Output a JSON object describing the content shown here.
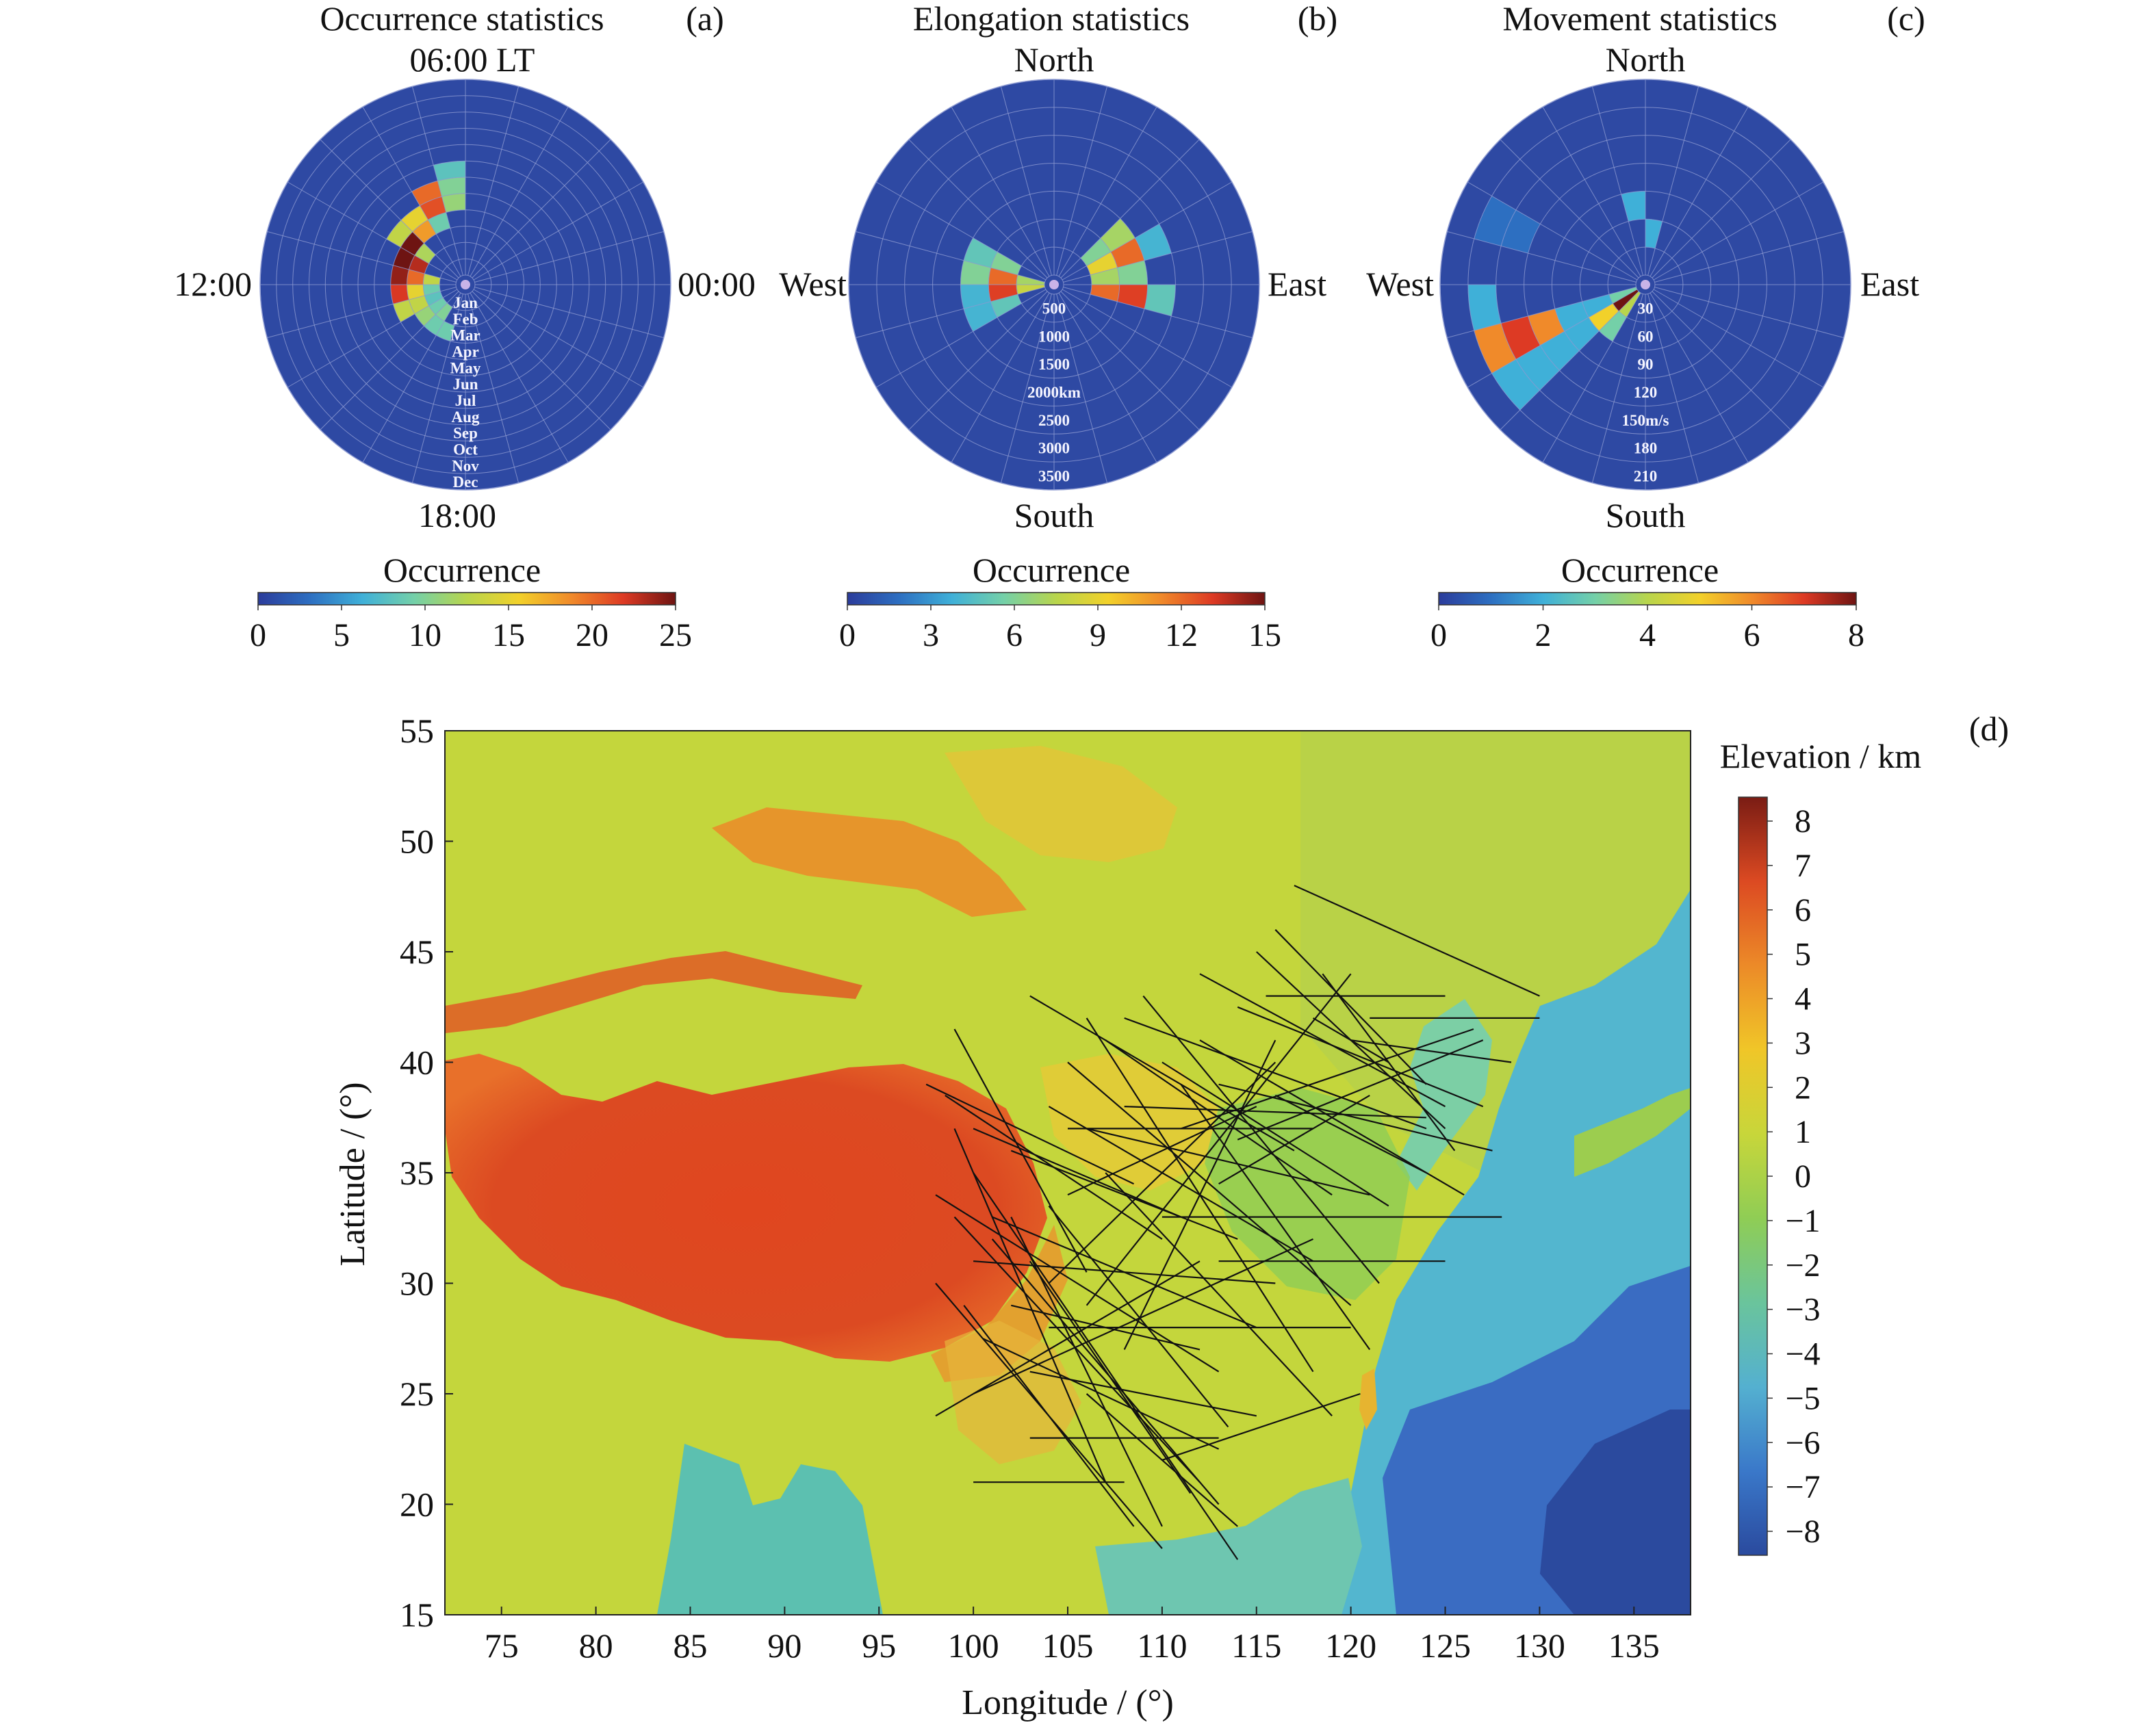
{
  "colors": {
    "polar_background": "#2e49a3",
    "jet_scale": [
      "#2b3c9b",
      "#2d6fc1",
      "#3fb0d8",
      "#74d0a8",
      "#b8d54c",
      "#f2d12a",
      "#f08a2a",
      "#dd3a24",
      "#6e1412"
    ],
    "elevation_scale": [
      "#2a4a9e",
      "#3a78c9",
      "#54b0d0",
      "#6ac49c",
      "#8fcd55",
      "#c8d63a",
      "#f0c628",
      "#ec8a28",
      "#dc4a22",
      "#7a1c14"
    ],
    "track_line": "#111111"
  },
  "chart_data": [
    {
      "panel": "(a)",
      "type": "heatmap",
      "projection": "polar",
      "title": "Occurrence statistics",
      "direction_labels": {
        "top": "06:00 LT",
        "left": "12:00",
        "right": "00:00",
        "bottom": "18:00"
      },
      "ring_labels": [
        "Jan",
        "Feb",
        "Mar",
        "Apr",
        "May",
        "Jun",
        "Jul",
        "Aug",
        "Sep",
        "Oct",
        "Nov",
        "Dec"
      ],
      "sectors": 24,
      "colorbar": {
        "title": "Occurrence",
        "ticks": [
          "0",
          "5",
          "10",
          "15",
          "20",
          "25"
        ],
        "range": [
          0,
          25
        ]
      },
      "cells": [
        {
          "ring": 2,
          "sector": 11,
          "value": 13
        },
        {
          "ring": 2,
          "sector": 12,
          "value": 9
        },
        {
          "ring": 2,
          "sector": 13,
          "value": 8
        },
        {
          "ring": 2,
          "sector": 14,
          "value": 9
        },
        {
          "ring": 2,
          "sector": 15,
          "value": 10
        },
        {
          "ring": 3,
          "sector": 9,
          "value": 12
        },
        {
          "ring": 3,
          "sector": 10,
          "value": 23
        },
        {
          "ring": 3,
          "sector": 11,
          "value": 20
        },
        {
          "ring": 3,
          "sector": 12,
          "value": 15
        },
        {
          "ring": 3,
          "sector": 13,
          "value": 13
        },
        {
          "ring": 3,
          "sector": 14,
          "value": 11
        },
        {
          "ring": 3,
          "sector": 15,
          "value": 9
        },
        {
          "ring": 3,
          "sector": 16,
          "value": 9
        },
        {
          "ring": 4,
          "sector": 7,
          "value": 9
        },
        {
          "ring": 4,
          "sector": 8,
          "value": 18
        },
        {
          "ring": 4,
          "sector": 9,
          "value": 25
        },
        {
          "ring": 4,
          "sector": 10,
          "value": 25
        },
        {
          "ring": 4,
          "sector": 11,
          "value": 24
        },
        {
          "ring": 4,
          "sector": 12,
          "value": 22
        },
        {
          "ring": 4,
          "sector": 13,
          "value": 13
        },
        {
          "ring": 5,
          "sector": 6,
          "value": 11
        },
        {
          "ring": 5,
          "sector": 7,
          "value": 21
        },
        {
          "ring": 5,
          "sector": 8,
          "value": 15
        },
        {
          "ring": 5,
          "sector": 9,
          "value": 13
        },
        {
          "ring": 6,
          "sector": 6,
          "value": 10
        },
        {
          "ring": 6,
          "sector": 7,
          "value": 20
        },
        {
          "ring": 7,
          "sector": 6,
          "value": 8
        }
      ]
    },
    {
      "panel": "(b)",
      "type": "heatmap",
      "projection": "polar",
      "title": "Elongation statistics",
      "direction_labels": {
        "top": "North",
        "left": "West",
        "right": "East",
        "bottom": "South"
      },
      "ring_labels": [
        "500",
        "1000",
        "1500",
        "2000km",
        "2500",
        "3000",
        "3500"
      ],
      "sectors": 24,
      "colorbar": {
        "title": "Occurrence",
        "ticks": [
          "0",
          "3",
          "6",
          "9",
          "12",
          "15"
        ],
        "range": [
          0,
          15
        ]
      },
      "cells": [
        {
          "ring": 1,
          "sector": 11,
          "value": 7
        },
        {
          "ring": 1,
          "sector": 12,
          "value": 8
        },
        {
          "ring": 2,
          "sector": 10,
          "value": 6
        },
        {
          "ring": 2,
          "sector": 11,
          "value": 12
        },
        {
          "ring": 2,
          "sector": 12,
          "value": 13
        },
        {
          "ring": 2,
          "sector": 13,
          "value": 5
        },
        {
          "ring": 3,
          "sector": 10,
          "value": 5
        },
        {
          "ring": 3,
          "sector": 11,
          "value": 6
        },
        {
          "ring": 3,
          "sector": 12,
          "value": 4
        },
        {
          "ring": 3,
          "sector": 13,
          "value": 4
        },
        {
          "ring": 2,
          "sector": 23,
          "value": 12
        },
        {
          "ring": 2,
          "sector": 0,
          "value": 7
        },
        {
          "ring": 2,
          "sector": 1,
          "value": 9
        },
        {
          "ring": 2,
          "sector": 2,
          "value": 6
        },
        {
          "ring": 3,
          "sector": 23,
          "value": 13
        },
        {
          "ring": 3,
          "sector": 0,
          "value": 6
        },
        {
          "ring": 3,
          "sector": 1,
          "value": 12
        },
        {
          "ring": 3,
          "sector": 2,
          "value": 7
        },
        {
          "ring": 4,
          "sector": 23,
          "value": 5
        },
        {
          "ring": 4,
          "sector": 1,
          "value": 4
        }
      ]
    },
    {
      "panel": "(c)",
      "type": "heatmap",
      "projection": "polar",
      "title": "Movement statistics",
      "direction_labels": {
        "top": "North",
        "left": "West",
        "right": "East",
        "bottom": "South"
      },
      "ring_labels": [
        "30",
        "60",
        "90",
        "120",
        "150m/s",
        "180",
        "210"
      ],
      "sectors": 24,
      "colorbar": {
        "title": "Occurrence",
        "ticks": [
          "0",
          "2",
          "4",
          "6",
          "8"
        ],
        "range": [
          0,
          8
        ]
      },
      "cells": [
        {
          "ring": 3,
          "sector": 6,
          "value": 2
        },
        {
          "ring": 2,
          "sector": 5,
          "value": 2
        },
        {
          "ring": 1,
          "sector": 13,
          "value": 3
        },
        {
          "ring": 1,
          "sector": 14,
          "value": 8
        },
        {
          "ring": 1,
          "sector": 15,
          "value": 4
        },
        {
          "ring": 2,
          "sector": 13,
          "value": 2
        },
        {
          "ring": 2,
          "sector": 14,
          "value": 5
        },
        {
          "ring": 2,
          "sector": 15,
          "value": 3
        },
        {
          "ring": 3,
          "sector": 13,
          "value": 2
        },
        {
          "ring": 3,
          "sector": 14,
          "value": 2
        },
        {
          "ring": 4,
          "sector": 13,
          "value": 6
        },
        {
          "ring": 4,
          "sector": 14,
          "value": 2
        },
        {
          "ring": 5,
          "sector": 13,
          "value": 7
        },
        {
          "ring": 5,
          "sector": 14,
          "value": 2
        },
        {
          "ring": 6,
          "sector": 12,
          "value": 2
        },
        {
          "ring": 6,
          "sector": 13,
          "value": 6
        },
        {
          "ring": 6,
          "sector": 14,
          "value": 2
        },
        {
          "ring": 5,
          "sector": 10,
          "value": 1
        },
        {
          "ring": 6,
          "sector": 10,
          "value": 1
        }
      ]
    },
    {
      "panel": "(d)",
      "type": "map",
      "xlabel": "Longitude / (°)",
      "ylabel": "Latitude / (°)",
      "xlim": [
        72,
        138
      ],
      "ylim": [
        15,
        55
      ],
      "xticks": [
        "75",
        "80",
        "85",
        "90",
        "95",
        "100",
        "105",
        "110",
        "115",
        "120",
        "125",
        "130",
        "135"
      ],
      "yticks": [
        "15",
        "20",
        "25",
        "30",
        "35",
        "40",
        "45",
        "50",
        "55"
      ],
      "colorbar": {
        "title": "Elevation / km",
        "ticks": [
          "8",
          "7",
          "6",
          "5",
          "4",
          "3",
          "2",
          "1",
          "0",
          "−1",
          "−2",
          "−3",
          "−4",
          "−5",
          "−6",
          "−7",
          "−8"
        ],
        "range": [
          -8,
          8
        ]
      },
      "tracks": [
        [
          [
            97.5,
            39.0
          ],
          [
            108.5,
            34.5
          ]
        ],
        [
          [
            98.5,
            38.5
          ],
          [
            110.0,
            32.0
          ]
        ],
        [
          [
            99.0,
            41.5
          ],
          [
            106.0,
            30.5
          ]
        ],
        [
          [
            100.0,
            37.0
          ],
          [
            111.0,
            33.0
          ]
        ],
        [
          [
            98.0,
            34.0
          ],
          [
            113.0,
            26.0
          ]
        ],
        [
          [
            99.0,
            33.0
          ],
          [
            112.0,
            21.0
          ]
        ],
        [
          [
            100.0,
            35.0
          ],
          [
            114.0,
            17.5
          ]
        ],
        [
          [
            101.0,
            32.0
          ],
          [
            113.0,
            20.0
          ]
        ],
        [
          [
            102.0,
            33.0
          ],
          [
            110.0,
            19.0
          ]
        ],
        [
          [
            103.0,
            31.0
          ],
          [
            111.5,
            20.5
          ]
        ],
        [
          [
            98.0,
            30.0
          ],
          [
            110.0,
            18.0
          ]
        ],
        [
          [
            99.5,
            29.0
          ],
          [
            108.5,
            19.0
          ]
        ],
        [
          [
            100.5,
            27.5
          ],
          [
            113.0,
            22.5
          ]
        ],
        [
          [
            98.0,
            24.0
          ],
          [
            112.0,
            31.0
          ]
        ],
        [
          [
            100.0,
            25.0
          ],
          [
            118.0,
            32.0
          ]
        ],
        [
          [
            102.0,
            36.0
          ],
          [
            114.0,
            32.0
          ]
        ],
        [
          [
            104.0,
            38.0
          ],
          [
            118.0,
            31.0
          ]
        ],
        [
          [
            106.0,
            37.0
          ],
          [
            121.0,
            34.0
          ]
        ],
        [
          [
            105.0,
            40.0
          ],
          [
            120.0,
            29.0
          ]
        ],
        [
          [
            107.0,
            41.0
          ],
          [
            119.0,
            34.0
          ]
        ],
        [
          [
            108.0,
            42.0
          ],
          [
            124.0,
            37.0
          ]
        ],
        [
          [
            110.0,
            40.0
          ],
          [
            122.0,
            33.5
          ]
        ],
        [
          [
            112.0,
            41.0
          ],
          [
            126.0,
            34.0
          ]
        ],
        [
          [
            113.0,
            39.0
          ],
          [
            127.5,
            36.0
          ]
        ],
        [
          [
            114.0,
            42.5
          ],
          [
            127.0,
            38.0
          ]
        ],
        [
          [
            115.0,
            45.0
          ],
          [
            125.0,
            37.0
          ]
        ],
        [
          [
            116.0,
            46.0
          ],
          [
            124.0,
            39.0
          ]
        ],
        [
          [
            117.0,
            48.0
          ],
          [
            130.0,
            43.0
          ]
        ],
        [
          [
            115.5,
            43.0
          ],
          [
            125.0,
            43.0
          ]
        ],
        [
          [
            121.0,
            42.0
          ],
          [
            130.0,
            42.0
          ]
        ],
        [
          [
            111.0,
            39.0
          ],
          [
            121.0,
            27.0
          ]
        ],
        [
          [
            118.0,
            42.0
          ],
          [
            122.0,
            40.0
          ]
        ],
        [
          [
            105.0,
            34.0
          ],
          [
            115.0,
            38.0
          ]
        ],
        [
          [
            104.0,
            30.0
          ],
          [
            116.0,
            40.0
          ]
        ],
        [
          [
            106.0,
            29.0
          ],
          [
            120.0,
            44.0
          ]
        ],
        [
          [
            108.0,
            27.0
          ],
          [
            116.0,
            41.0
          ]
        ],
        [
          [
            103.0,
            23.0
          ],
          [
            113.0,
            23.0
          ]
        ],
        [
          [
            100.0,
            21.0
          ],
          [
            108.0,
            21.0
          ]
        ],
        [
          [
            104.0,
            28.0
          ],
          [
            120.0,
            28.0
          ]
        ],
        [
          [
            113.0,
            31.0
          ],
          [
            125.0,
            31.0
          ]
        ],
        [
          [
            110.0,
            33.0
          ],
          [
            128.0,
            33.0
          ]
        ],
        [
          [
            105.0,
            37.0
          ],
          [
            118.0,
            37.0
          ]
        ],
        [
          [
            110.0,
            22.0
          ],
          [
            120.5,
            25.0
          ]
        ],
        [
          [
            103.0,
            26.0
          ],
          [
            115.0,
            24.0
          ]
        ],
        [
          [
            101.0,
            33.0
          ],
          [
            115.0,
            28.0
          ]
        ],
        [
          [
            106.0,
            42.0
          ],
          [
            118.0,
            26.0
          ]
        ],
        [
          [
            109.0,
            43.0
          ],
          [
            121.5,
            30.0
          ]
        ],
        [
          [
            103.0,
            43.0
          ],
          [
            117.0,
            36.0
          ]
        ],
        [
          [
            112.0,
            44.0
          ],
          [
            125.0,
            38.0
          ]
        ],
        [
          [
            118.5,
            44.0
          ],
          [
            125.5,
            36.0
          ]
        ],
        [
          [
            114.0,
            36.5
          ],
          [
            127.0,
            41.0
          ]
        ],
        [
          [
            120.0,
            41.0
          ],
          [
            128.5,
            40.0
          ]
        ],
        [
          [
            107.0,
            35.0
          ],
          [
            119.0,
            24.0
          ]
        ],
        [
          [
            104.0,
            33.5
          ],
          [
            113.5,
            23.5
          ]
        ],
        [
          [
            100.0,
            31.0
          ],
          [
            116.0,
            30.0
          ]
        ],
        [
          [
            99.0,
            37.0
          ],
          [
            107.0,
            21.0
          ]
        ],
        [
          [
            106.0,
            25.0
          ],
          [
            114.0,
            19.0
          ]
        ],
        [
          [
            102.0,
            29.0
          ],
          [
            112.0,
            27.0
          ]
        ],
        [
          [
            108.0,
            38.0
          ],
          [
            124.0,
            37.5
          ]
        ],
        [
          [
            111.0,
            37.0
          ],
          [
            126.5,
            41.5
          ]
        ],
        [
          [
            116.0,
            38.5
          ],
          [
            124.0,
            35.0
          ]
        ],
        [
          [
            113.0,
            34.5
          ],
          [
            121.0,
            38.5
          ]
        ]
      ]
    }
  ],
  "panels": {
    "a": {
      "title": "Occurrence statistics",
      "letter": "(a)",
      "top": "06:00 LT",
      "left": "12:00",
      "right": "00:00",
      "bottom": "18:00",
      "colorbar_title": "Occurrence"
    },
    "b": {
      "title": "Elongation statistics",
      "letter": "(b)",
      "top": "North",
      "left": "West",
      "right": "East",
      "bottom": "South",
      "colorbar_title": "Occurrence"
    },
    "c": {
      "title": "Movement statistics",
      "letter": "(c)",
      "top": "North",
      "left": "West",
      "right": "East",
      "bottom": "South",
      "colorbar_title": "Occurrence"
    },
    "d": {
      "letter": "(d)",
      "xlabel": "Longitude / (°)",
      "ylabel": "Latitude / (°)",
      "colorbar_title": "Elevation / km"
    }
  }
}
